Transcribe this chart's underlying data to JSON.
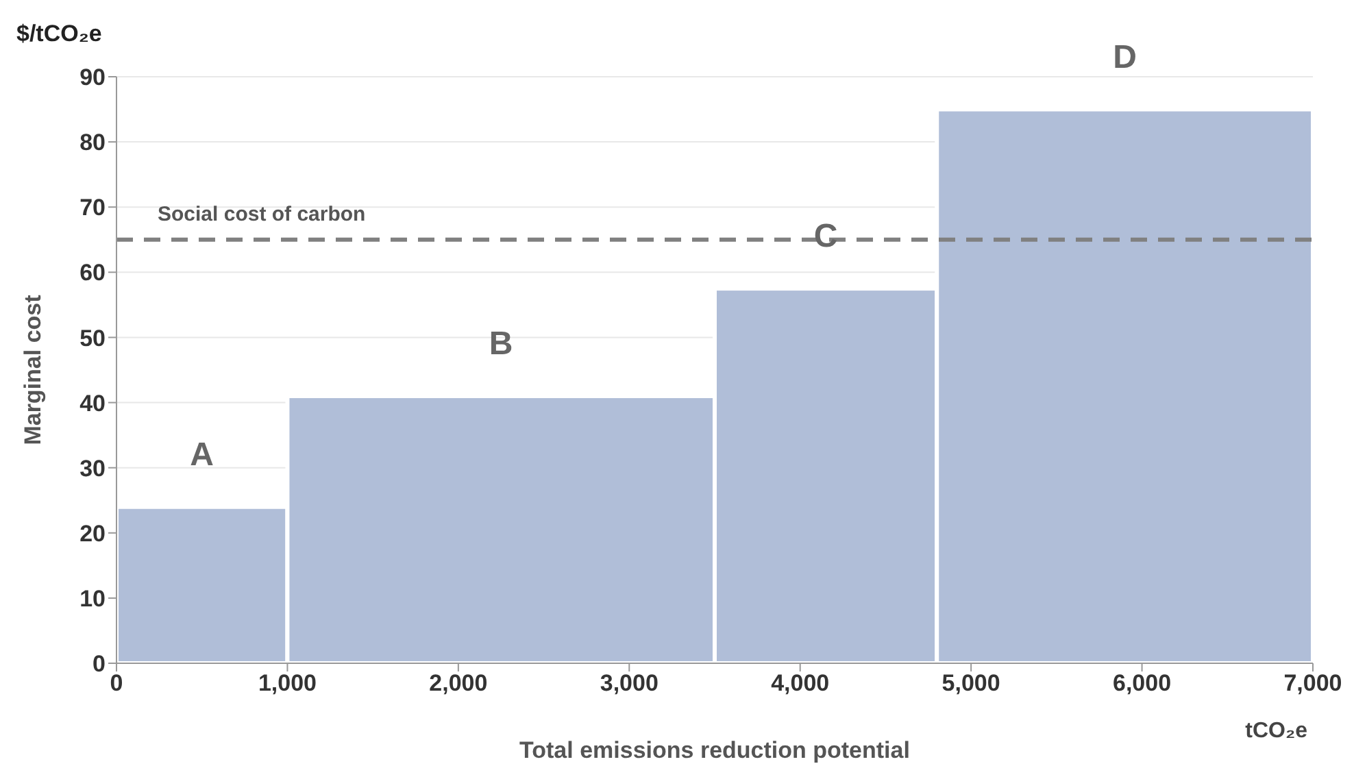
{
  "chart_data": {
    "type": "histogram",
    "xlabel": "Total emissions reduction potential",
    "ylabel": "Marginal cost",
    "bins": [
      0,
      1000,
      3500,
      4800,
      7000
    ],
    "values": [
      24,
      41,
      57.5,
      85
    ],
    "color": "#b0bed8",
    "xlim": [
      0,
      7000
    ],
    "xticks": [
      0,
      {
        "value": 1000,
        "label": "1,000"
      },
      {
        "value": 2000,
        "label": "2,000"
      },
      {
        "value": 3000,
        "label": "3,000"
      },
      {
        "value": 4000,
        "label": "4,000"
      },
      {
        "value": 5000,
        "label": "5,000"
      },
      {
        "value": 6000,
        "label": "6,000"
      },
      {
        "value": 7000,
        "label": "7,000"
      }
    ],
    "ylim": [
      0,
      90
    ],
    "yticks": [
      0,
      10,
      20,
      30,
      40,
      50,
      60,
      70,
      80,
      90
    ],
    "grid": "y",
    "ref_lines": [
      {
        "axis": "y",
        "value": 65,
        "label": "Social cost of carbon",
        "color": "#808080",
        "line_style": "dashed"
      }
    ],
    "annotations": [
      "$/tCO₂e",
      "tCO₂e",
      "A",
      "B",
      "C",
      "D"
    ]
  }
}
